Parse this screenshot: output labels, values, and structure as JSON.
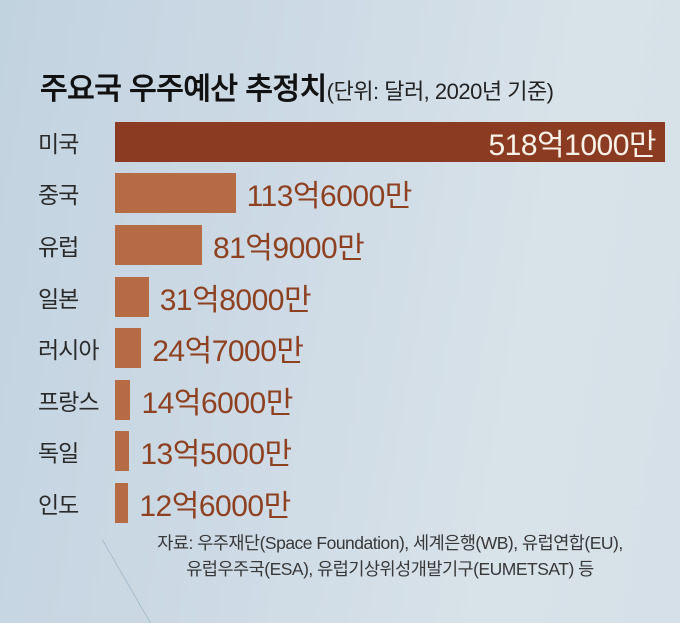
{
  "header": {
    "title": "주요국 우주예산 추정치",
    "subtitle": "(단위: 달러, 2020년 기준)"
  },
  "footer": {
    "line1": "자료: 우주재단(Space Foundation), 세계은행(WB), 유럽연합(EU),",
    "line2": "유럽우주국(ESA), 유럽기상위성개발기구(EUMETSAT) 등"
  },
  "colors": {
    "bar_primary": "#8b3b22",
    "bar_secondary": "#b56b43",
    "value_text": "#8e4121",
    "value_text_inverse": "#f7f1e8",
    "background_left": "#c2d3e0",
    "background_right": "#d8e2e9"
  },
  "chart_data": {
    "type": "bar",
    "orientation": "horizontal",
    "title": "주요국 우주예산 추정치",
    "unit_note": "단위: 달러, 2020년 기준",
    "categories": [
      "미국",
      "중국",
      "유럽",
      "일본",
      "러시아",
      "프랑스",
      "독일",
      "인도"
    ],
    "values": [
      518.1,
      113.6,
      81.9,
      31.8,
      24.7,
      14.6,
      13.5,
      12.6
    ],
    "value_labels": [
      "518억1000만",
      "113억6000만",
      "81억9000만",
      "31억8000만",
      "24억7000만",
      "14억6000만",
      "13억5000만",
      "12억6000만"
    ],
    "value_unit": "억 달러",
    "xlim": [
      0,
      518.1
    ],
    "grid": false,
    "legend": false
  }
}
